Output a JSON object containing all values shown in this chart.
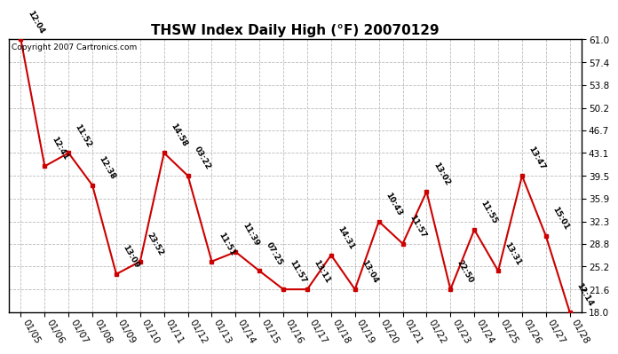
{
  "title": "THSW Index Daily High (°F) 20070129",
  "copyright": "Copyright 2007 Cartronics.com",
  "x_labels": [
    "01/05",
    "01/06",
    "01/07",
    "01/08",
    "01/09",
    "01/10",
    "01/11",
    "01/12",
    "01/13",
    "01/14",
    "01/15",
    "01/16",
    "01/17",
    "01/18",
    "01/19",
    "01/20",
    "01/21",
    "01/22",
    "01/23",
    "01/24",
    "01/25",
    "01/26",
    "01/27",
    "01/28"
  ],
  "y_values": [
    61.0,
    41.0,
    43.1,
    38.0,
    24.0,
    26.0,
    43.1,
    39.5,
    26.0,
    27.5,
    24.5,
    21.6,
    21.6,
    27.0,
    21.6,
    32.3,
    28.8,
    37.0,
    21.6,
    31.0,
    24.5,
    39.5,
    30.0,
    18.0
  ],
  "point_labels": [
    "12:04",
    "12:41",
    "11:52",
    "12:38",
    "13:09",
    "23:52",
    "14:58",
    "03:22",
    "11:51",
    "11:39",
    "07:25",
    "11:57",
    "13:11",
    "14:31",
    "13:04",
    "10:43",
    "11:57",
    "13:02",
    "22:50",
    "11:55",
    "13:31",
    "13:47",
    "15:01",
    "12:14"
  ],
  "y_ticks": [
    18.0,
    21.6,
    25.2,
    28.8,
    32.3,
    35.9,
    39.5,
    43.1,
    46.7,
    50.2,
    53.8,
    57.4,
    61.0
  ],
  "y_min": 18.0,
  "y_max": 61.0,
  "line_color": "#cc0000",
  "marker_color": "#cc0000",
  "bg_color": "#ffffff",
  "grid_color": "#bbbbbb",
  "title_fontsize": 11,
  "label_fontsize": 6.5,
  "tick_fontsize": 7.5,
  "copyright_fontsize": 6.5
}
